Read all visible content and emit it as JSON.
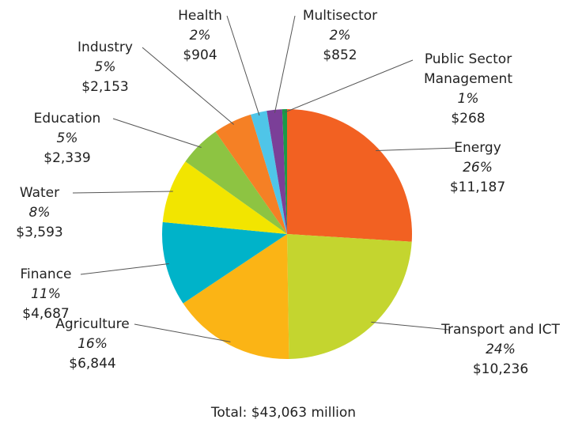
{
  "chart_data": {
    "type": "pie",
    "categories": [
      "Energy",
      "Transport and ICT",
      "Agriculture",
      "Finance",
      "Water",
      "Education",
      "Industry",
      "Health",
      "Multisector",
      "Public Sector Management"
    ],
    "values": [
      11187,
      10236,
      6844,
      4687,
      3593,
      2339,
      2153,
      904,
      852,
      268
    ],
    "value_labels": [
      "$11,187",
      "$10,236",
      "$6,844",
      "$4,687",
      "$3,593",
      "$2,339",
      "$2,153",
      "$904",
      "$852",
      "$268"
    ],
    "share_labels": [
      "26%",
      "24%",
      "16%",
      "11%",
      "8%",
      "5%",
      "5%",
      "2%",
      "2%",
      "1%"
    ],
    "colors": [
      "#f26122",
      "#c4d52f",
      "#fbb415",
      "#00b3c9",
      "#f2e500",
      "#8dc442",
      "#f58025",
      "#4fc5e8",
      "#7b3f98",
      "#1a9a48"
    ],
    "caption": "Total: $43,063 million"
  }
}
